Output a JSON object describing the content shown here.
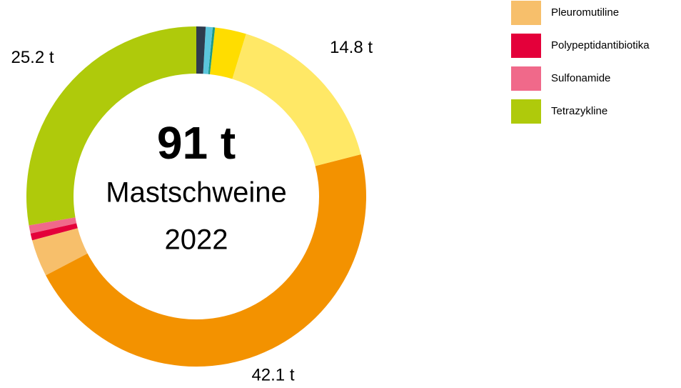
{
  "chart_data": {
    "type": "donut",
    "center_value": "91 t",
    "center_title": "Mastschweine",
    "center_year": "2022",
    "categories": [
      null,
      null,
      null,
      null,
      null,
      null,
      "Pleuromutiline",
      "Polypeptidantibiotika",
      "Sulfonamide",
      "Tetrazykline"
    ],
    "values": [
      0.8,
      0.6,
      0.2,
      2.7,
      14.8,
      42.1,
      3.2,
      0.6,
      0.7,
      25.2
    ],
    "value_labels": [
      null,
      null,
      null,
      null,
      "14.8 t",
      "42.1 t",
      null,
      null,
      null,
      "25.2 t"
    ],
    "colors": [
      "#2e3b4e",
      "#5bc5dc",
      "#1a9a8a",
      "#ffdd00",
      "#ffe866",
      "#f39200",
      "#f7bf6b",
      "#e4003a",
      "#f0698a",
      "#afca0b"
    ]
  }
}
